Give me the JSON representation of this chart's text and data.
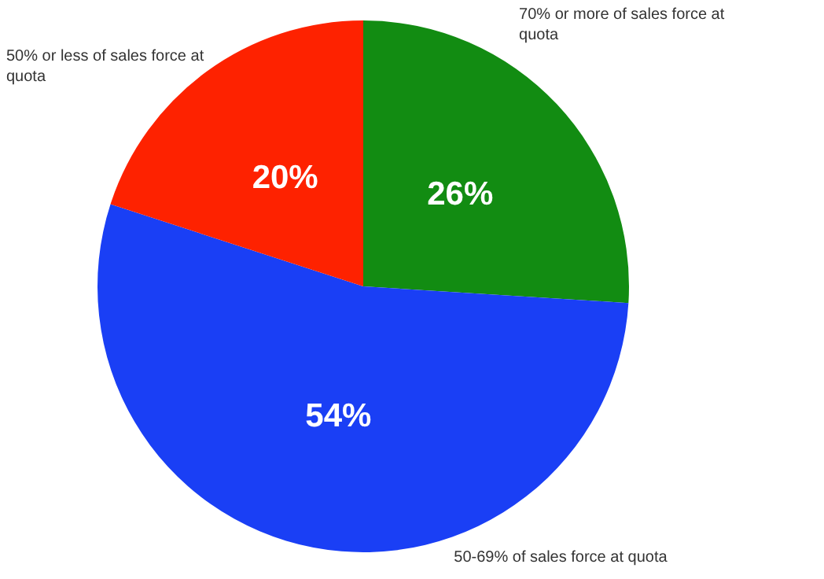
{
  "chart_data": {
    "type": "pie",
    "categories": [
      "70% or more of sales force at quota",
      "50-69% of sales force at quota",
      "50% or less of sales force at quota"
    ],
    "values": [
      26,
      54,
      20
    ],
    "colors": [
      "#128c12",
      "#1a3ff5",
      "#fe2200"
    ],
    "value_labels": [
      "26%",
      "54%",
      "20%"
    ],
    "legend": false
  }
}
